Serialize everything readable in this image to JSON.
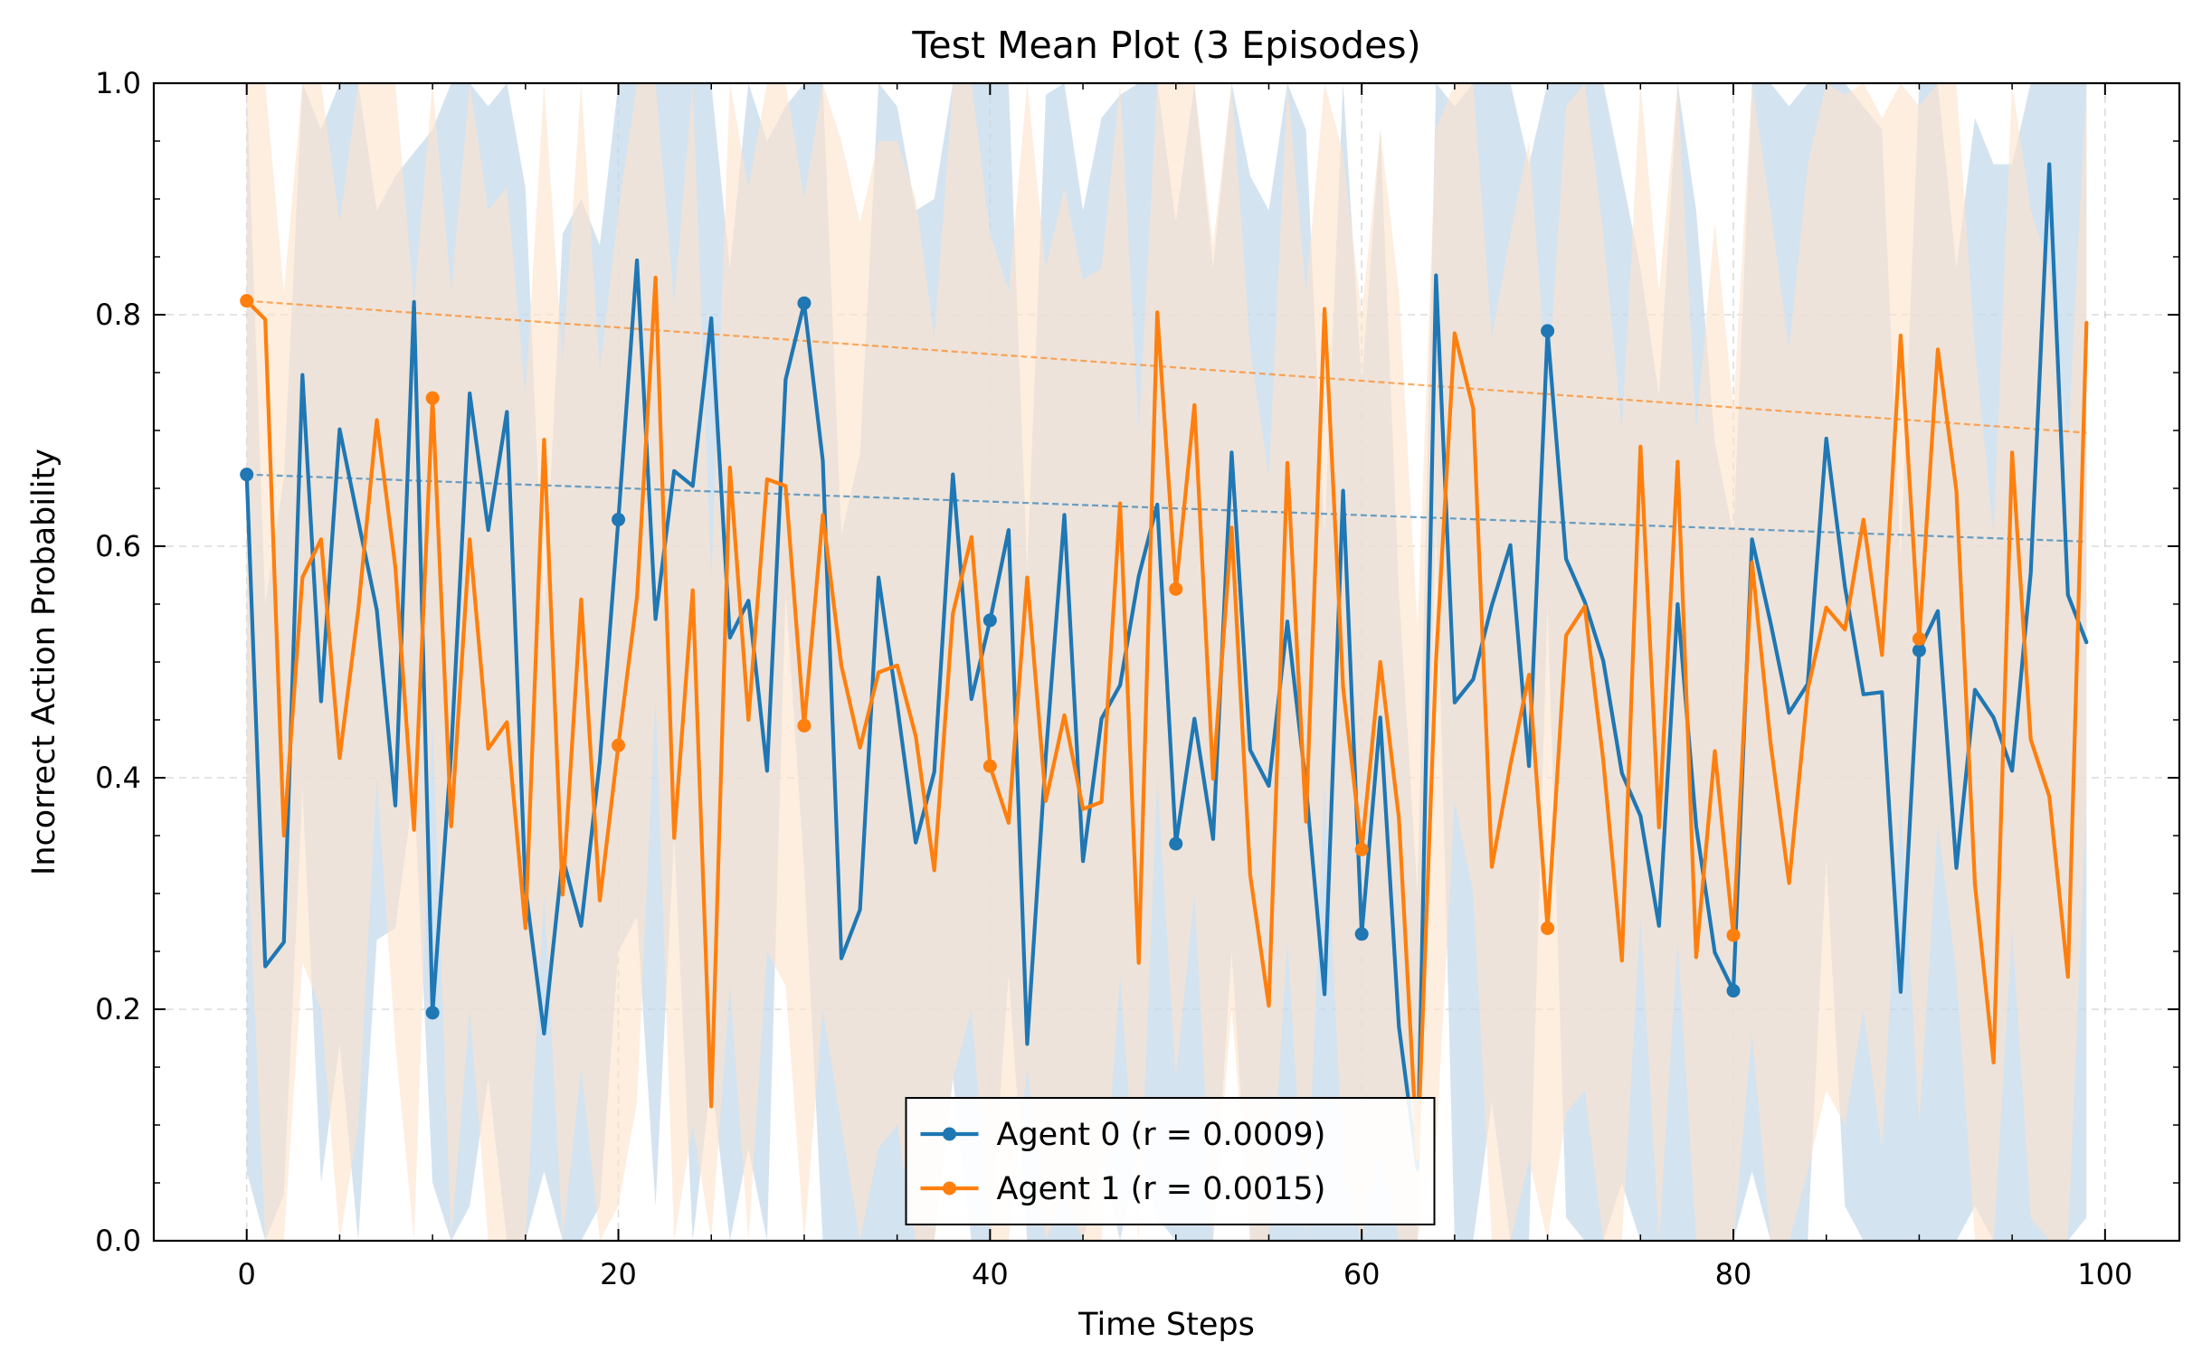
{
  "chart_data": {
    "type": "line",
    "title": "Test Mean Plot (3 Episodes)",
    "xlabel": "Time Steps",
    "ylabel": "Incorrect Action Probability",
    "xlim": [
      -5,
      104
    ],
    "ylim": [
      0.0,
      1.0
    ],
    "xticks": [
      0,
      20,
      40,
      60,
      80,
      100
    ],
    "xtick_labels": [
      "0",
      "20",
      "40",
      "60",
      "80",
      "100"
    ],
    "yticks": [
      0.0,
      0.2,
      0.4,
      0.6,
      0.8,
      1.0
    ],
    "ytick_labels": [
      "0.0",
      "0.2",
      "0.4",
      "0.6",
      "0.8",
      "1.0"
    ],
    "grid": true,
    "legend_position": "lower-center",
    "marker_every": 10,
    "series": [
      {
        "name": "Agent 0 (r = 0.0009)",
        "color": "#1f77b4",
        "band_color": "#c5d9eb",
        "values": [
          0.662,
          0.237,
          0.258,
          0.748,
          0.466,
          0.701,
          0.622,
          0.545,
          0.376,
          0.811,
          0.197,
          0.421,
          0.732,
          0.614,
          0.716,
          0.305,
          0.179,
          0.331,
          0.272,
          0.414,
          0.623,
          0.847,
          0.537,
          0.665,
          0.652,
          0.797,
          0.521,
          0.553,
          0.406,
          0.744,
          0.81,
          0.674,
          0.244,
          0.286,
          0.573,
          0.463,
          0.344,
          0.405,
          0.662,
          0.468,
          0.536,
          0.614,
          0.17,
          0.419,
          0.627,
          0.328,
          0.451,
          0.48,
          0.574,
          0.636,
          0.343,
          0.451,
          0.347,
          0.681,
          0.424,
          0.393,
          0.535,
          0.393,
          0.213,
          0.648,
          0.265,
          0.452,
          0.185,
          0.062,
          0.834,
          0.465,
          0.485,
          0.549,
          0.601,
          0.41,
          0.786,
          0.589,
          0.552,
          0.501,
          0.404,
          0.367,
          0.272,
          0.55,
          0.358,
          0.249,
          0.216,
          0.606,
          0.534,
          0.456,
          0.481,
          0.693,
          0.565,
          0.472,
          0.474,
          0.215,
          0.51,
          0.544,
          0.322,
          0.476,
          0.452,
          0.406,
          0.577,
          0.93,
          0.558,
          0.517
        ],
        "band_low": [
          0.06,
          0.0,
          0.04,
          0.39,
          0.05,
          0.17,
          0.0,
          0.26,
          0.27,
          0.39,
          0.05,
          0.0,
          0.03,
          0.14,
          0.0,
          0.0,
          0.06,
          0.0,
          0.0,
          0.03,
          0.25,
          0.28,
          0.03,
          0.35,
          0.0,
          0.14,
          0.0,
          0.08,
          0.0,
          0.56,
          0.32,
          0.0,
          0.0,
          0.0,
          0.0,
          0.0,
          0.0,
          0.0,
          0.14,
          0.0,
          0.0,
          0.23,
          0.0,
          0.0,
          0.0,
          0.0,
          0.07,
          0.0,
          0.08,
          0.02,
          0.0,
          0.0,
          0.0,
          0.25,
          0.0,
          0.0,
          0.0,
          0.0,
          0.0,
          0.0,
          0.0,
          0.0,
          0.0,
          0.0,
          0.62,
          0.0,
          0.0,
          0.12,
          0.0,
          0.0,
          0.55,
          0.02,
          0.0,
          0.0,
          0.05,
          0.0,
          0.0,
          0.0,
          0.0,
          0.0,
          0.0,
          0.06,
          0.0,
          0.0,
          0.0,
          0.33,
          0.03,
          0.0,
          0.0,
          0.0,
          0.0,
          0.0,
          0.0,
          0.03,
          0.0,
          0.0,
          0.0,
          0.0,
          0.0,
          0.02
        ],
        "band_high": [
          1.0,
          0.55,
          0.66,
          1.0,
          0.96,
          1.0,
          1.0,
          0.89,
          0.92,
          0.94,
          0.96,
          1.0,
          1.0,
          0.98,
          1.0,
          0.91,
          0.54,
          0.87,
          0.9,
          0.86,
          1.0,
          1.0,
          1.0,
          1.0,
          1.0,
          1.0,
          0.84,
          1.0,
          0.95,
          0.98,
          1.0,
          1.0,
          0.61,
          0.68,
          1.0,
          0.98,
          0.89,
          0.9,
          1.0,
          1.0,
          1.0,
          1.0,
          0.58,
          0.99,
          1.0,
          0.89,
          0.97,
          0.99,
          1.0,
          1.0,
          0.88,
          1.0,
          0.84,
          1.0,
          0.92,
          0.89,
          1.0,
          0.96,
          0.61,
          1.0,
          0.74,
          0.96,
          0.56,
          0.3,
          1.0,
          0.98,
          1.0,
          1.0,
          1.0,
          0.93,
          1.0,
          1.0,
          1.0,
          1.0,
          0.92,
          0.84,
          0.73,
          1.0,
          0.89,
          0.69,
          0.61,
          1.0,
          1.0,
          0.98,
          1.0,
          1.0,
          1.0,
          0.98,
          0.96,
          0.59,
          1.0,
          1.0,
          0.84,
          0.97,
          0.93,
          0.93,
          1.0,
          1.0,
          1.0,
          1.0
        ]
      },
      {
        "name": "Agent 1 (r = 0.0015)",
        "color": "#ff7f0e",
        "band_color": "#fde3cc",
        "values": [
          0.812,
          0.796,
          0.35,
          0.573,
          0.606,
          0.417,
          0.545,
          0.709,
          0.582,
          0.355,
          0.728,
          0.358,
          0.606,
          0.425,
          0.448,
          0.27,
          0.692,
          0.299,
          0.554,
          0.294,
          0.428,
          0.556,
          0.832,
          0.348,
          0.562,
          0.116,
          0.668,
          0.45,
          0.658,
          0.652,
          0.445,
          0.627,
          0.497,
          0.426,
          0.491,
          0.497,
          0.436,
          0.32,
          0.542,
          0.608,
          0.41,
          0.361,
          0.573,
          0.38,
          0.454,
          0.373,
          0.379,
          0.637,
          0.24,
          0.802,
          0.563,
          0.722,
          0.399,
          0.616,
          0.316,
          0.203,
          0.672,
          0.362,
          0.805,
          0.478,
          0.338,
          0.5,
          0.365,
          0.071,
          0.501,
          0.784,
          0.719,
          0.323,
          0.411,
          0.489,
          0.27,
          0.523,
          0.548,
          0.415,
          0.242,
          0.686,
          0.357,
          0.673,
          0.245,
          0.423,
          0.264,
          0.586,
          0.43,
          0.309,
          0.476,
          0.547,
          0.528,
          0.623,
          0.506,
          0.782,
          0.52,
          0.77,
          0.648,
          0.308,
          0.154,
          0.681,
          0.433,
          0.384,
          0.228,
          0.793
        ],
        "band_low": [
          0.35,
          0.0,
          0.0,
          0.24,
          0.2,
          0.0,
          0.1,
          0.4,
          0.17,
          0.0,
          0.45,
          0.0,
          0.2,
          0.0,
          0.0,
          0.0,
          0.3,
          0.0,
          0.15,
          0.0,
          0.03,
          0.12,
          0.47,
          0.0,
          0.1,
          0.0,
          0.22,
          0.0,
          0.25,
          0.22,
          0.0,
          0.2,
          0.1,
          0.0,
          0.08,
          0.1,
          0.0,
          0.0,
          0.14,
          0.2,
          0.0,
          0.0,
          0.15,
          0.0,
          0.04,
          0.0,
          0.0,
          0.23,
          0.0,
          0.4,
          0.14,
          0.3,
          0.0,
          0.2,
          0.0,
          0.0,
          0.26,
          0.0,
          0.4,
          0.06,
          0.0,
          0.08,
          0.0,
          0.0,
          0.08,
          0.38,
          0.3,
          0.0,
          0.0,
          0.07,
          0.0,
          0.11,
          0.13,
          0.0,
          0.0,
          0.28,
          0.0,
          0.26,
          0.0,
          0.0,
          0.0,
          0.18,
          0.0,
          0.0,
          0.06,
          0.13,
          0.1,
          0.2,
          0.08,
          0.38,
          0.1,
          0.36,
          0.23,
          0.0,
          0.0,
          0.27,
          0.02,
          0.0,
          0.0,
          0.38
        ],
        "band_high": [
          1.0,
          1.0,
          0.82,
          1.0,
          1.0,
          0.88,
          1.0,
          1.0,
          1.0,
          0.81,
          1.0,
          0.82,
          1.0,
          0.89,
          0.91,
          0.73,
          1.0,
          0.76,
          1.0,
          0.75,
          0.89,
          1.0,
          1.0,
          0.81,
          1.0,
          0.57,
          1.0,
          0.91,
          1.0,
          1.0,
          0.9,
          1.0,
          0.95,
          0.88,
          0.95,
          0.95,
          0.9,
          0.78,
          1.0,
          1.0,
          0.87,
          0.82,
          1.0,
          0.84,
          0.91,
          0.83,
          0.84,
          1.0,
          0.7,
          1.0,
          1.0,
          1.0,
          0.86,
          1.0,
          0.77,
          0.66,
          1.0,
          0.82,
          1.0,
          0.94,
          0.8,
          0.96,
          0.82,
          0.53,
          0.96,
          1.0,
          1.0,
          0.78,
          0.87,
          0.95,
          0.73,
          0.98,
          1.0,
          0.87,
          0.7,
          1.0,
          0.82,
          1.0,
          0.7,
          0.88,
          0.72,
          1.0,
          0.89,
          0.77,
          0.93,
          1.0,
          0.99,
          1.0,
          0.97,
          1.0,
          0.98,
          1.0,
          1.0,
          0.77,
          0.61,
          1.0,
          0.89,
          0.84,
          0.69,
          1.0
        ]
      }
    ],
    "trend_lines": [
      {
        "series": "Agent 0 (r = 0.0009)",
        "color": "#1f77b4",
        "x": [
          0,
          99
        ],
        "y": [
          0.662,
          0.604
        ]
      },
      {
        "series": "Agent 1 (r = 0.0015)",
        "color": "#ff7f0e",
        "x": [
          0,
          99
        ],
        "y": [
          0.812,
          0.698
        ]
      }
    ]
  }
}
